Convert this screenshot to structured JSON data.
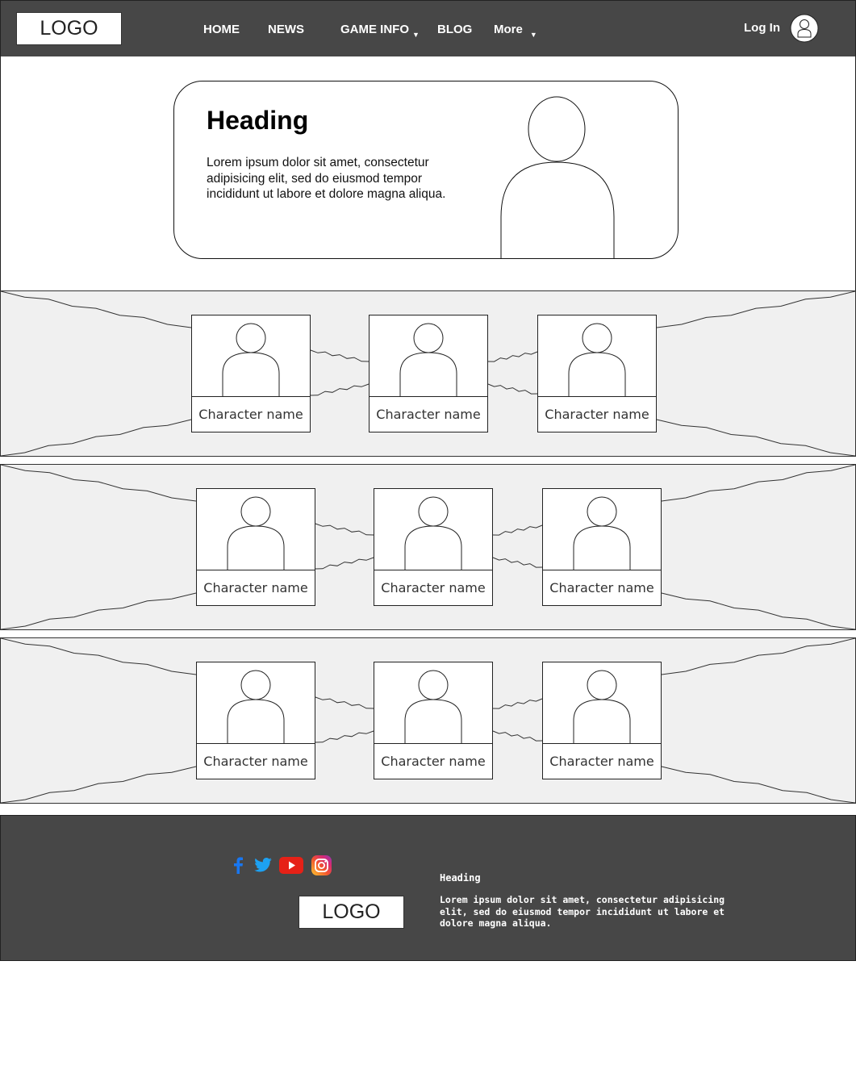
{
  "header": {
    "logo": "LOGO",
    "nav": [
      {
        "label": "HOME",
        "dropdown": false
      },
      {
        "label": "NEWS",
        "dropdown": false
      },
      {
        "label": "GAME INFO",
        "dropdown": true
      },
      {
        "label": "BLOG",
        "dropdown": false
      },
      {
        "label": "More",
        "dropdown": true
      }
    ],
    "login_label": "Log In",
    "avatar_icon": "user-icon"
  },
  "hero": {
    "heading": "Heading",
    "text": "Lorem ipsum dolor sit amet, consectetur adipisicing elit, sed do eiusmod tempor incididunt ut labore et dolore magna aliqua.",
    "image_icon": "person-placeholder-icon"
  },
  "character_rows": [
    {
      "characters": [
        {
          "name": "Character name"
        },
        {
          "name": "Character name"
        },
        {
          "name": "Character name"
        }
      ]
    },
    {
      "characters": [
        {
          "name": "Character name"
        },
        {
          "name": "Character name"
        },
        {
          "name": "Character name"
        }
      ]
    },
    {
      "characters": [
        {
          "name": "Character name"
        },
        {
          "name": "Character name"
        },
        {
          "name": "Character name"
        }
      ]
    }
  ],
  "footer": {
    "social": [
      {
        "icon": "facebook-icon",
        "color": "#1877f2"
      },
      {
        "icon": "twitter-icon",
        "color": "#1da1f2"
      },
      {
        "icon": "youtube-icon",
        "color": "#e62117"
      },
      {
        "icon": "instagram-icon",
        "color": "#e1306c"
      }
    ],
    "logo": "LOGO",
    "heading": "Heading",
    "text": "Lorem ipsum dolor sit amet, consectetur adipisicing elit, sed do eiusmod tempor incididunt ut labore et dolore magna aliqua."
  },
  "colors": {
    "header_bg": "#474747",
    "footer_bg": "#474747",
    "row_bg": "#f0f0f0"
  }
}
